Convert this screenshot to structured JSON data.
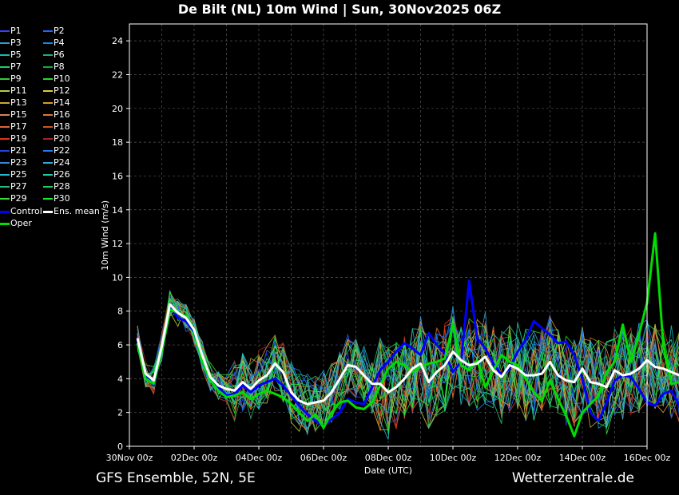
{
  "title": "De Bilt  (NL)  10m Wind | Sun, 30Nov2025 06Z",
  "footer": {
    "left": "GFS Ensemble, 52N, 5E",
    "right": "Wetterzentrale.de"
  },
  "colors": {
    "background": "#000000",
    "frame": "#ffffff",
    "grid": "#555555",
    "control": "#0000ff",
    "oper": "#00dd00",
    "mean": "#ffffff",
    "members": [
      "#3344ff",
      "#2266ff",
      "#3399cc",
      "#1188ee",
      "#11bbbb",
      "#22aa88",
      "#22cc66",
      "#11aa44",
      "#33cc33",
      "#22dd22",
      "#bbcc44",
      "#ddcc44",
      "#ccaa33",
      "#dd9933",
      "#cc8855",
      "#dd7733",
      "#dd6633",
      "#cc5522",
      "#dd3322",
      "#aa2222",
      "#2244dd",
      "#2277ee",
      "#3388dd",
      "#33aadd",
      "#22bbcc",
      "#22ccaa",
      "#22bb77",
      "#22cc55",
      "#33dd33",
      "#11ee33"
    ]
  },
  "legend": [
    "P1",
    "P2",
    "P3",
    "P4",
    "P5",
    "P6",
    "P7",
    "P8",
    "P9",
    "P10",
    "P11",
    "P12",
    "P13",
    "P14",
    "P15",
    "P16",
    "P17",
    "P18",
    "P19",
    "P20",
    "P21",
    "P22",
    "P23",
    "P24",
    "P25",
    "P26",
    "P27",
    "P28",
    "P29",
    "P30",
    "Control",
    "Ens. mean",
    "Oper"
  ],
  "chart_data": {
    "type": "line",
    "title": "De Bilt  (NL)  10m Wind | Sun, 30Nov2025 06Z",
    "xlabel": "Date (UTC)",
    "ylabel": "10m Wind (m/s)",
    "ylim": [
      0,
      25
    ],
    "yticks": [
      0,
      2,
      4,
      6,
      8,
      10,
      12,
      14,
      16,
      18,
      20,
      22,
      24
    ],
    "xlim": [
      "30Nov 00z",
      "16Dec 00z"
    ],
    "xticks": [
      "30Nov 00z",
      "02Dec 00z",
      "04Dec 00z",
      "06Dec 00z",
      "08Dec 00z",
      "10Dec 00z",
      "12Dec 00z",
      "14Dec 00z",
      "16Dec 00z"
    ],
    "x_start": "30Nov 06z",
    "x_step_hours": 6,
    "grid": true,
    "legend_position": "left",
    "series": [
      {
        "name": "Control",
        "values": [
          6.3,
          4.2,
          3.6,
          5.8,
          8.3,
          7.6,
          7.4,
          6.8,
          5.3,
          4.0,
          3.5,
          3.0,
          3.1,
          3.6,
          3.2,
          3.6,
          3.8,
          4.0,
          3.6,
          3.0,
          2.4,
          1.9,
          1.5,
          1.2,
          1.6,
          2.0,
          2.8,
          2.6,
          2.5,
          3.5,
          4.5,
          5.0,
          5.6,
          6.1,
          5.8,
          5.4,
          6.7,
          6.0,
          5.5,
          4.4,
          5.0,
          9.8,
          6.4,
          5.8,
          4.9,
          4.2,
          4.6,
          5.6,
          6.3,
          7.4,
          7.0,
          6.6,
          6.1,
          6.2,
          5.4,
          4.0,
          2.0,
          1.5,
          2.6,
          3.9,
          4.2,
          4.1,
          3.4,
          2.6,
          2.4,
          3.1,
          3.3,
          2.4
        ]
      },
      {
        "name": "Oper",
        "values": [
          6.1,
          4.0,
          3.7,
          5.7,
          8.1,
          7.9,
          7.7,
          6.9,
          5.1,
          3.9,
          3.3,
          2.9,
          3.0,
          3.2,
          2.8,
          3.1,
          3.3,
          3.1,
          2.9,
          2.5,
          2.0,
          1.5,
          1.9,
          1.1,
          2.0,
          2.6,
          2.7,
          2.3,
          2.2,
          2.6,
          3.6,
          4.6,
          5.0,
          4.8,
          4.4,
          4.7,
          4.9,
          5.0,
          5.2,
          7.2,
          4.8,
          4.5,
          5.1,
          3.5,
          4.5,
          5.4,
          5.0,
          4.8,
          4.0,
          3.2,
          2.7,
          3.9,
          2.8,
          1.8,
          0.6,
          2.0,
          2.5,
          3.0,
          4.4,
          5.0,
          7.2,
          5.0,
          6.6,
          8.5,
          12.6,
          6.0,
          3.7,
          3.8
        ]
      },
      {
        "name": "Ens. mean",
        "values": [
          6.4,
          4.3,
          3.9,
          5.9,
          8.4,
          7.9,
          7.6,
          6.9,
          5.4,
          4.1,
          3.6,
          3.4,
          3.3,
          3.8,
          3.4,
          3.9,
          4.2,
          4.9,
          4.4,
          3.2,
          2.7,
          2.5,
          2.6,
          2.7,
          3.2,
          4.0,
          4.8,
          4.7,
          4.2,
          3.7,
          3.7,
          3.2,
          3.5,
          4.0,
          4.6,
          4.9,
          3.8,
          4.4,
          4.8,
          5.6,
          5.1,
          4.8,
          4.9,
          5.3,
          4.5,
          4.1,
          4.8,
          4.6,
          4.2,
          4.2,
          4.3,
          5.0,
          4.2,
          3.9,
          3.8,
          4.6,
          3.8,
          3.7,
          3.5,
          4.5,
          4.2,
          4.3,
          4.6,
          5.1,
          4.7,
          4.6,
          4.4,
          4.2
        ]
      }
    ]
  }
}
